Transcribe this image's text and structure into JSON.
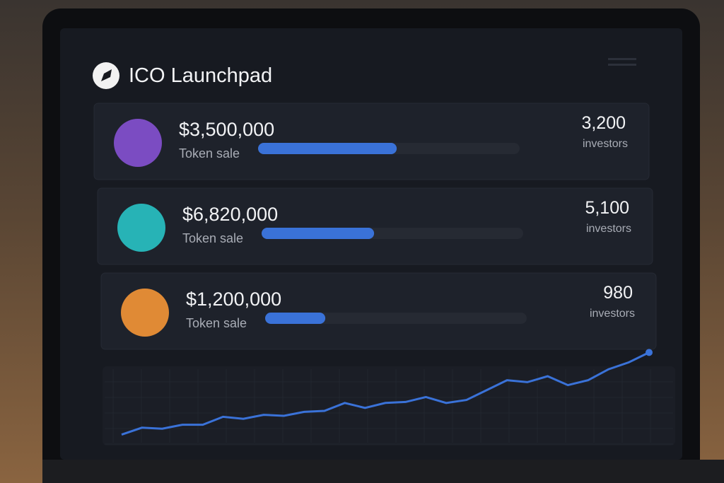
{
  "header": {
    "title": "ICO Launchpad"
  },
  "sales": [
    {
      "amount": "$3,500,000",
      "label": "Token sale",
      "progress": 53,
      "investors": "3,200",
      "investors_label": "investors",
      "color": "#7b4cc2"
    },
    {
      "amount": "$6,820,000",
      "label": "Token sale",
      "progress": 43,
      "investors": "5,100",
      "investors_label": "investors",
      "color": "#27b3b6"
    },
    {
      "amount": "$1,200,000",
      "label": "Token sale",
      "progress": 23,
      "investors": "980",
      "investors_label": "investors",
      "color": "#e08a35"
    }
  ],
  "trend": {
    "values": [
      11,
      18,
      17,
      21,
      21,
      29,
      27,
      31,
      30,
      34,
      35,
      43,
      38,
      43,
      44,
      49,
      43,
      46,
      56,
      66,
      64,
      70,
      61,
      66,
      77,
      84,
      94
    ],
    "ylim": [
      0,
      100
    ],
    "color": "#3a72d8"
  }
}
